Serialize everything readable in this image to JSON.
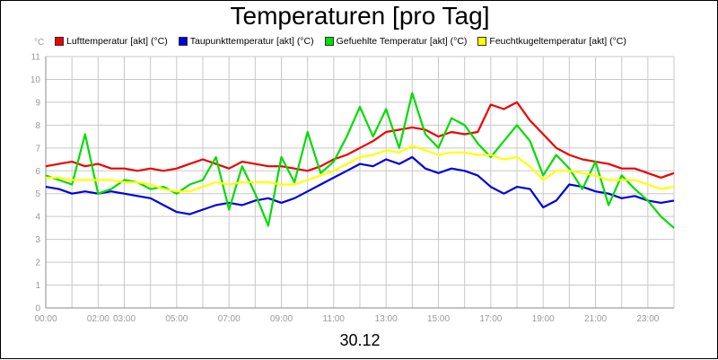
{
  "chart_data": {
    "type": "line",
    "title": "Temperaturen [pro Tag]",
    "ylabel": "°C",
    "xlabel": "30.12",
    "ylim": [
      0,
      11
    ],
    "xlim": [
      0,
      24
    ],
    "y_ticks": [
      "0",
      "1",
      "2",
      "3",
      "4",
      "5",
      "6",
      "7",
      "8",
      "9",
      "10",
      "11"
    ],
    "x_ticks": [
      {
        "t": 0,
        "label": "00:00"
      },
      {
        "t": 2,
        "label": "02:00"
      },
      {
        "t": 3,
        "label": "03:00"
      },
      {
        "t": 5,
        "label": "05:00"
      },
      {
        "t": 7,
        "label": "07:00"
      },
      {
        "t": 9,
        "label": "09:00"
      },
      {
        "t": 11,
        "label": "11:00"
      },
      {
        "t": 13,
        "label": "13:00"
      },
      {
        "t": 15,
        "label": "15:00"
      },
      {
        "t": 17,
        "label": "17:00"
      },
      {
        "t": 19,
        "label": "19:00"
      },
      {
        "t": 21,
        "label": "21:00"
      },
      {
        "t": 23,
        "label": "23:00"
      }
    ],
    "grid": true,
    "legend_position": "top",
    "series": [
      {
        "name": "Lufttemperatur [akt] (°C)",
        "color": "#ee0000",
        "x": [
          0,
          0.5,
          1,
          1.5,
          2,
          2.5,
          3,
          3.5,
          4,
          4.5,
          5,
          5.5,
          6,
          6.5,
          7,
          7.5,
          8,
          8.5,
          9,
          9.5,
          10,
          10.5,
          11,
          11.5,
          12,
          12.5,
          13,
          13.5,
          14,
          14.5,
          15,
          15.5,
          16,
          16.5,
          17,
          17.5,
          18,
          18.5,
          19,
          19.5,
          20,
          20.5,
          21,
          21.5,
          22,
          22.5,
          23,
          23.5,
          24
        ],
        "values": [
          6.2,
          6.3,
          6.4,
          6.2,
          6.3,
          6.1,
          6.1,
          6.0,
          6.1,
          6.0,
          6.1,
          6.3,
          6.5,
          6.3,
          6.1,
          6.4,
          6.3,
          6.2,
          6.2,
          6.1,
          6.0,
          6.2,
          6.5,
          6.7,
          7.0,
          7.3,
          7.7,
          7.8,
          7.9,
          7.8,
          7.5,
          7.7,
          7.6,
          7.7,
          8.9,
          8.7,
          9.0,
          8.2,
          7.6,
          7.0,
          6.7,
          6.5,
          6.4,
          6.3,
          6.1,
          6.1,
          5.9,
          5.7,
          5.9
        ]
      },
      {
        "name": "Taupunkttemperatur [akt] (°C)",
        "color": "#0000dd",
        "x": [
          0,
          0.5,
          1,
          1.5,
          2,
          2.5,
          3,
          3.5,
          4,
          4.5,
          5,
          5.5,
          6,
          6.5,
          7,
          7.5,
          8,
          8.5,
          9,
          9.5,
          10,
          10.5,
          11,
          11.5,
          12,
          12.5,
          13,
          13.5,
          14,
          14.5,
          15,
          15.5,
          16,
          16.5,
          17,
          17.5,
          18,
          18.5,
          19,
          19.5,
          20,
          20.5,
          21,
          21.5,
          22,
          22.5,
          23,
          23.5,
          24
        ],
        "values": [
          5.3,
          5.2,
          5.0,
          5.1,
          5.0,
          5.1,
          5.0,
          4.9,
          4.8,
          4.5,
          4.2,
          4.1,
          4.3,
          4.5,
          4.6,
          4.5,
          4.7,
          4.8,
          4.6,
          4.8,
          5.1,
          5.4,
          5.7,
          6.0,
          6.3,
          6.2,
          6.5,
          6.3,
          6.6,
          6.1,
          5.9,
          6.1,
          6.0,
          5.8,
          5.3,
          5.0,
          5.3,
          5.2,
          4.4,
          4.7,
          5.4,
          5.3,
          5.1,
          5.0,
          4.8,
          4.9,
          4.7,
          4.6,
          4.7
        ]
      },
      {
        "name": "Gefuehlte Temperatur [akt] (°C)",
        "color": "#00dd00",
        "x": [
          0,
          0.5,
          1,
          1.5,
          2,
          2.5,
          3,
          3.5,
          4,
          4.5,
          5,
          5.5,
          6,
          6.5,
          7,
          7.5,
          8,
          8.5,
          9,
          9.5,
          10,
          10.5,
          11,
          11.5,
          12,
          12.5,
          13,
          13.5,
          14,
          14.5,
          15,
          15.5,
          16,
          16.5,
          17,
          17.5,
          18,
          18.5,
          19,
          19.5,
          20,
          20.5,
          21,
          21.5,
          22,
          22.5,
          23,
          23.5,
          24
        ],
        "values": [
          5.8,
          5.6,
          5.4,
          7.6,
          5.0,
          5.2,
          5.6,
          5.5,
          5.2,
          5.3,
          5.0,
          5.4,
          5.6,
          6.6,
          4.3,
          6.2,
          5.0,
          3.6,
          6.6,
          5.5,
          7.7,
          5.9,
          6.4,
          7.5,
          8.8,
          7.5,
          8.7,
          7.0,
          9.4,
          7.6,
          7.0,
          8.3,
          8.0,
          7.2,
          6.6,
          7.3,
          8.0,
          7.3,
          5.8,
          6.7,
          6.1,
          5.2,
          6.4,
          4.5,
          5.8,
          5.2,
          4.7,
          4.0,
          3.5
        ]
      },
      {
        "name": "Feuchtkugeltemperatur [akt] (°C)",
        "color": "#ffff00",
        "x": [
          0,
          0.5,
          1,
          1.5,
          2,
          2.5,
          3,
          3.5,
          4,
          4.5,
          5,
          5.5,
          6,
          6.5,
          7,
          7.5,
          8,
          8.5,
          9,
          9.5,
          10,
          10.5,
          11,
          11.5,
          12,
          12.5,
          13,
          13.5,
          14,
          14.5,
          15,
          15.5,
          16,
          16.5,
          17,
          17.5,
          18,
          18.5,
          19,
          19.5,
          20,
          20.5,
          21,
          21.5,
          22,
          22.5,
          23,
          23.5,
          24
        ],
        "values": [
          5.7,
          5.7,
          5.6,
          5.6,
          5.6,
          5.6,
          5.5,
          5.5,
          5.4,
          5.2,
          5.1,
          5.1,
          5.3,
          5.5,
          5.4,
          5.5,
          5.5,
          5.5,
          5.4,
          5.4,
          5.6,
          5.8,
          6.0,
          6.3,
          6.6,
          6.7,
          6.9,
          6.8,
          7.1,
          6.9,
          6.7,
          6.8,
          6.8,
          6.7,
          6.7,
          6.5,
          6.6,
          6.2,
          5.6,
          6.0,
          6.0,
          5.9,
          5.8,
          5.6,
          5.6,
          5.6,
          5.4,
          5.2,
          5.3
        ]
      }
    ]
  }
}
